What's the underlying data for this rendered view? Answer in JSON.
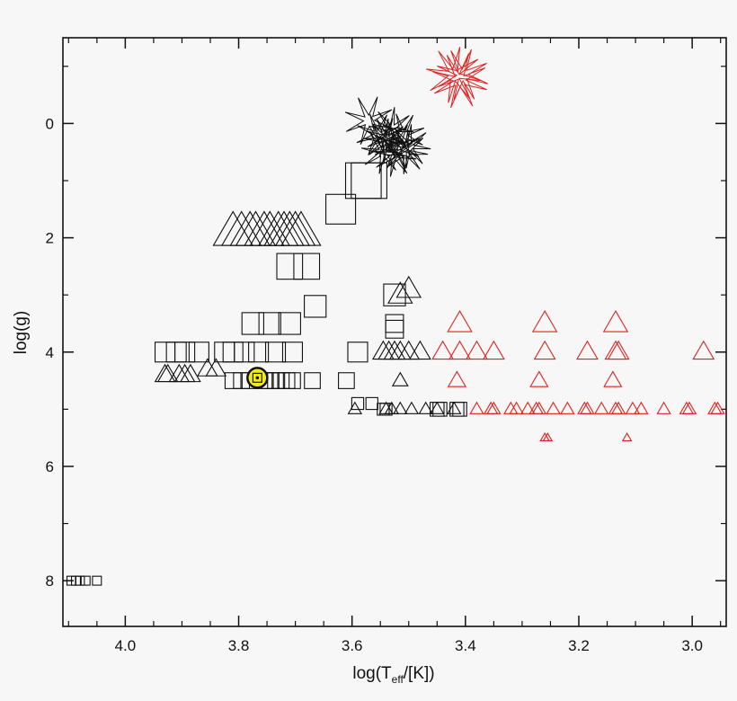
{
  "chart_data": {
    "type": "scatter",
    "title": "",
    "xlabel": {
      "main": "log(T",
      "sub": "eff",
      "tail": "/[K])"
    },
    "ylabel": "log(g)",
    "xlim": [
      4.11,
      2.94
    ],
    "ylim": [
      -1.5,
      8.8
    ],
    "x_inverted": true,
    "y_inverted": true,
    "grid": false,
    "xticks": [
      {
        "value": 4.0,
        "label": "4.0"
      },
      {
        "value": 3.8,
        "label": "3.8"
      },
      {
        "value": 3.6,
        "label": "3.6"
      },
      {
        "value": 3.4,
        "label": "3.4"
      },
      {
        "value": 3.2,
        "label": "3.2"
      },
      {
        "value": 3.0,
        "label": "3.0"
      }
    ],
    "yticks": [
      {
        "value": 0,
        "label": "0"
      },
      {
        "value": 2,
        "label": "2"
      },
      {
        "value": 4,
        "label": "4"
      },
      {
        "value": 6,
        "label": "6"
      },
      {
        "value": 8,
        "label": "8"
      }
    ],
    "colors": {
      "black": "#111111",
      "red": "#dd2222",
      "highlight": "#f2ea1a"
    },
    "series": [
      {
        "marker": "square",
        "color": "black",
        "points": [
          [
            3.93,
            4.0,
            1
          ],
          [
            3.91,
            4.0,
            1
          ],
          [
            3.895,
            4.0,
            1
          ],
          [
            3.87,
            4.0,
            1
          ],
          [
            3.825,
            4.0,
            1
          ],
          [
            3.81,
            4.0,
            1
          ],
          [
            3.79,
            4.0,
            1
          ],
          [
            3.765,
            4.0,
            1
          ],
          [
            3.735,
            4.0,
            1
          ],
          [
            3.705,
            4.0,
            1
          ],
          [
            3.59,
            4.0,
            1
          ],
          [
            3.775,
            3.5,
            1.1
          ],
          [
            3.745,
            3.5,
            1.1
          ],
          [
            3.71,
            3.5,
            1.1
          ],
          [
            3.665,
            3.2,
            1.1
          ],
          [
            3.71,
            2.5,
            1.3
          ],
          [
            3.68,
            2.5,
            1.3
          ],
          [
            3.62,
            1.5,
            1.5
          ],
          [
            3.58,
            1.0,
            1.8
          ],
          [
            3.57,
            1.0,
            1.8
          ],
          [
            3.525,
            3.0,
            1.1
          ],
          [
            3.525,
            3.5,
            0.9
          ],
          [
            3.525,
            3.6,
            0.9
          ],
          [
            3.81,
            4.5,
            0.8
          ],
          [
            3.795,
            4.5,
            0.8
          ],
          [
            3.78,
            4.5,
            0.8
          ],
          [
            3.755,
            4.5,
            0.8
          ],
          [
            3.745,
            4.5,
            0.8
          ],
          [
            3.735,
            4.5,
            0.8
          ],
          [
            3.725,
            4.5,
            0.8
          ],
          [
            3.715,
            4.5,
            0.8
          ],
          [
            3.705,
            4.5,
            0.8
          ],
          [
            3.67,
            4.5,
            0.8
          ],
          [
            3.61,
            4.5,
            0.8
          ],
          [
            3.59,
            4.9,
            0.6
          ],
          [
            3.565,
            4.9,
            0.6
          ],
          [
            3.545,
            5.0,
            0.6
          ],
          [
            3.54,
            5.0,
            0.6
          ],
          [
            3.45,
            5.0,
            0.7
          ],
          [
            3.445,
            5.0,
            0.7
          ],
          [
            3.415,
            5.0,
            0.7
          ],
          [
            3.41,
            5.0,
            0.7
          ],
          [
            4.095,
            8.0,
            0.45
          ],
          [
            4.087,
            8.0,
            0.45
          ],
          [
            4.08,
            8.0,
            0.45
          ],
          [
            4.07,
            8.0,
            0.45
          ],
          [
            4.05,
            8.0,
            0.45
          ]
        ]
      },
      {
        "marker": "triangle",
        "color": "black",
        "points": [
          [
            3.81,
            1.9,
            1.8
          ],
          [
            3.795,
            1.9,
            1.8
          ],
          [
            3.78,
            1.9,
            1.8
          ],
          [
            3.77,
            1.9,
            1.8
          ],
          [
            3.755,
            1.9,
            1.8
          ],
          [
            3.745,
            1.9,
            1.8
          ],
          [
            3.73,
            1.9,
            1.8
          ],
          [
            3.72,
            1.9,
            1.8
          ],
          [
            3.71,
            1.9,
            1.8
          ],
          [
            3.7,
            1.9,
            1.8
          ],
          [
            3.69,
            1.9,
            1.8
          ],
          [
            3.5,
            2.9,
            1.1
          ],
          [
            3.515,
            3.0,
            1.1
          ],
          [
            3.545,
            4.0,
            0.95
          ],
          [
            3.535,
            4.0,
            0.95
          ],
          [
            3.525,
            4.0,
            0.95
          ],
          [
            3.515,
            4.0,
            0.95
          ],
          [
            3.5,
            4.0,
            0.95
          ],
          [
            3.48,
            4.0,
            0.95
          ],
          [
            3.93,
            4.4,
            0.9
          ],
          [
            3.925,
            4.4,
            0.9
          ],
          [
            3.905,
            4.4,
            0.9
          ],
          [
            3.895,
            4.4,
            0.9
          ],
          [
            3.885,
            4.4,
            0.9
          ],
          [
            3.855,
            4.3,
            0.9
          ],
          [
            3.84,
            4.3,
            0.9
          ],
          [
            3.595,
            5.0,
            0.6
          ],
          [
            3.54,
            5.0,
            0.6
          ],
          [
            3.53,
            5.0,
            0.6
          ],
          [
            3.515,
            5.0,
            0.6
          ],
          [
            3.495,
            5.0,
            0.6
          ],
          [
            3.47,
            5.0,
            0.6
          ],
          [
            3.45,
            5.0,
            0.6
          ],
          [
            3.42,
            5.0,
            0.6
          ],
          [
            3.515,
            4.5,
            0.7
          ]
        ]
      },
      {
        "marker": "triangle",
        "color": "red",
        "points": [
          [
            3.41,
            3.5,
            1.1
          ],
          [
            3.26,
            3.5,
            1.1
          ],
          [
            3.135,
            3.5,
            1.1
          ],
          [
            3.44,
            4.0,
            0.95
          ],
          [
            3.41,
            4.0,
            0.95
          ],
          [
            3.38,
            4.0,
            0.95
          ],
          [
            3.35,
            4.0,
            0.95
          ],
          [
            3.26,
            4.0,
            0.95
          ],
          [
            3.185,
            4.0,
            0.95
          ],
          [
            3.135,
            4.0,
            0.95
          ],
          [
            3.13,
            4.0,
            0.95
          ],
          [
            2.98,
            4.0,
            0.95
          ],
          [
            3.415,
            4.5,
            0.8
          ],
          [
            3.27,
            4.5,
            0.8
          ],
          [
            3.14,
            4.5,
            0.8
          ],
          [
            3.38,
            5.0,
            0.6
          ],
          [
            3.355,
            5.0,
            0.6
          ],
          [
            3.35,
            5.0,
            0.6
          ],
          [
            3.32,
            5.0,
            0.6
          ],
          [
            3.31,
            5.0,
            0.6
          ],
          [
            3.29,
            5.0,
            0.6
          ],
          [
            3.275,
            5.0,
            0.6
          ],
          [
            3.27,
            5.0,
            0.6
          ],
          [
            3.245,
            5.0,
            0.6
          ],
          [
            3.22,
            5.0,
            0.6
          ],
          [
            3.19,
            5.0,
            0.6
          ],
          [
            3.185,
            5.0,
            0.6
          ],
          [
            3.16,
            5.0,
            0.6
          ],
          [
            3.135,
            5.0,
            0.6
          ],
          [
            3.13,
            5.0,
            0.6
          ],
          [
            3.105,
            5.0,
            0.6
          ],
          [
            3.09,
            5.0,
            0.6
          ],
          [
            3.05,
            5.0,
            0.6
          ],
          [
            3.01,
            5.0,
            0.6
          ],
          [
            3.005,
            5.0,
            0.6
          ],
          [
            2.96,
            5.0,
            0.6
          ],
          [
            2.955,
            5.0,
            0.6
          ],
          [
            3.26,
            5.5,
            0.4
          ],
          [
            3.255,
            5.5,
            0.4
          ],
          [
            3.115,
            5.5,
            0.4
          ]
        ]
      },
      {
        "marker": "star",
        "color": "black",
        "points": [
          [
            3.57,
            -0.05,
            1.6
          ],
          [
            3.555,
            0.2,
            1.4
          ],
          [
            3.54,
            0.3,
            1.4
          ],
          [
            3.53,
            0.1,
            1.4
          ],
          [
            3.52,
            0.4,
            1.5
          ],
          [
            3.51,
            0.2,
            1.4
          ],
          [
            3.5,
            0.4,
            1.4
          ],
          [
            3.545,
            0.5,
            1.4
          ],
          [
            3.525,
            0.55,
            1.4
          ],
          [
            3.505,
            0.5,
            1.4
          ],
          [
            3.54,
            0.25,
            1.3
          ]
        ]
      },
      {
        "marker": "star",
        "color": "red",
        "points": [
          [
            3.42,
            -0.85,
            1.8
          ],
          [
            3.41,
            -0.75,
            1.8
          ],
          [
            3.405,
            -0.85,
            1.7
          ]
        ]
      },
      {
        "marker": "circle-dot",
        "color": "highlight",
        "points": [
          [
            3.767,
            4.45,
            1.0
          ]
        ]
      }
    ]
  }
}
